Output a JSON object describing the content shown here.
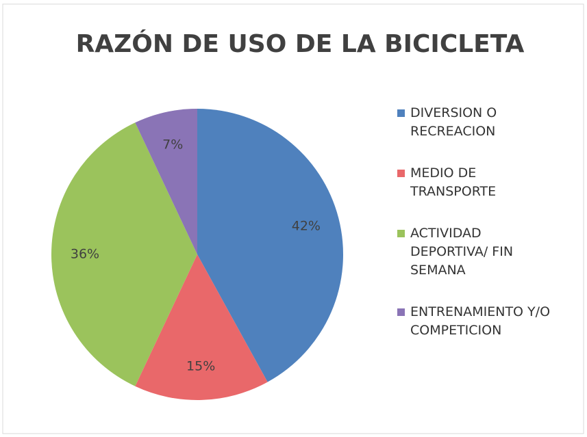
{
  "chart_data": {
    "type": "pie",
    "title": "RAZÓN DE USO DE LA BICICLETA",
    "categories": [
      "DIVERSION O RECREACION",
      "MEDIO DE TRANSPORTE",
      "ACTIVIDAD DEPORTIVA/ FIN SEMANA",
      "ENTRENAMIENTO Y/O COMPETICION"
    ],
    "values": [
      42,
      15,
      36,
      7
    ],
    "value_labels": [
      "42%",
      "15%",
      "36%",
      "7%"
    ],
    "colors": [
      "#4f81bd",
      "#e9686a",
      "#9bc35c",
      "#8a74b6"
    ],
    "legend": "right"
  }
}
